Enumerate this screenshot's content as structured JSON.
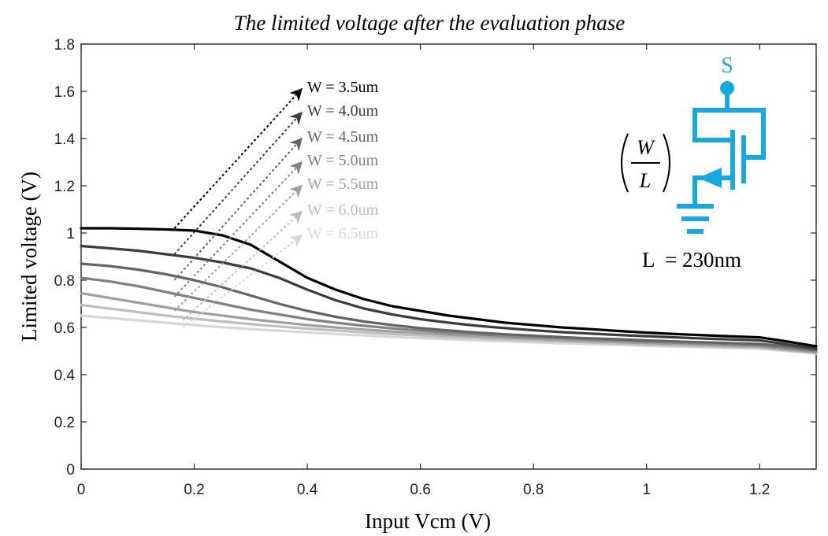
{
  "chart_data": {
    "type": "line",
    "title": "The limited voltage after the evaluation phase",
    "xlabel": "Input Vcm (V)",
    "ylabel": "Limited voltage (V)",
    "xlim": [
      0,
      1.3
    ],
    "ylim": [
      0,
      1.8
    ],
    "x_ticks": [
      0,
      0.2,
      0.4,
      0.6,
      0.8,
      1,
      1.2
    ],
    "x_tick_labels": [
      "0",
      "0.2",
      "0.4",
      "0.6",
      "0.8",
      "1",
      "1.2"
    ],
    "y_ticks": [
      0,
      0.2,
      0.4,
      0.6,
      0.8,
      1,
      1.2,
      1.4,
      1.6,
      1.8
    ],
    "y_tick_labels": [
      "0",
      "0.2",
      "0.4",
      "0.6",
      "0.8",
      "1",
      "1.2",
      "1.4",
      "1.6",
      "1.8"
    ],
    "grid": false,
    "x": [
      0,
      0.05,
      0.1,
      0.15,
      0.2,
      0.25,
      0.3,
      0.35,
      0.4,
      0.45,
      0.5,
      0.55,
      0.6,
      0.65,
      0.7,
      0.75,
      0.8,
      0.85,
      0.9,
      0.95,
      1.0,
      1.05,
      1.1,
      1.15,
      1.2,
      1.25,
      1.3
    ],
    "series": [
      {
        "name": "W = 3.5um",
        "color": "#000000",
        "values": [
          1.02,
          1.02,
          1.018,
          1.015,
          1.01,
          0.99,
          0.95,
          0.88,
          0.81,
          0.76,
          0.72,
          0.69,
          0.67,
          0.65,
          0.635,
          0.62,
          0.61,
          0.6,
          0.593,
          0.585,
          0.578,
          0.572,
          0.567,
          0.562,
          0.558,
          0.54,
          0.52
        ]
      },
      {
        "name": "W = 4.0um",
        "color": "#3c3c3c",
        "values": [
          0.945,
          0.935,
          0.925,
          0.91,
          0.895,
          0.875,
          0.85,
          0.81,
          0.76,
          0.715,
          0.68,
          0.655,
          0.635,
          0.62,
          0.607,
          0.597,
          0.588,
          0.58,
          0.574,
          0.568,
          0.563,
          0.558,
          0.553,
          0.549,
          0.545,
          0.528,
          0.51
        ]
      },
      {
        "name": "W = 4.5um",
        "color": "#646464",
        "values": [
          0.87,
          0.86,
          0.845,
          0.825,
          0.8,
          0.77,
          0.735,
          0.7,
          0.67,
          0.645,
          0.625,
          0.61,
          0.597,
          0.587,
          0.578,
          0.571,
          0.565,
          0.559,
          0.554,
          0.55,
          0.545,
          0.541,
          0.537,
          0.534,
          0.53,
          0.52,
          0.505
        ]
      },
      {
        "name": "W = 5.0um",
        "color": "#828282",
        "values": [
          0.81,
          0.795,
          0.775,
          0.75,
          0.725,
          0.7,
          0.675,
          0.655,
          0.635,
          0.62,
          0.607,
          0.596,
          0.587,
          0.578,
          0.571,
          0.565,
          0.559,
          0.554,
          0.549,
          0.545,
          0.54,
          0.536,
          0.532,
          0.528,
          0.524,
          0.512,
          0.5
        ]
      },
      {
        "name": "W = 5.5um",
        "color": "#a0a0a0",
        "values": [
          0.745,
          0.725,
          0.705,
          0.685,
          0.665,
          0.65,
          0.635,
          0.622,
          0.61,
          0.6,
          0.591,
          0.583,
          0.576,
          0.569,
          0.563,
          0.557,
          0.552,
          0.547,
          0.542,
          0.538,
          0.534,
          0.53,
          0.527,
          0.523,
          0.519,
          0.507,
          0.495
        ]
      },
      {
        "name": "W = 6.0um",
        "color": "#bebebe",
        "values": [
          0.695,
          0.68,
          0.665,
          0.65,
          0.637,
          0.625,
          0.614,
          0.604,
          0.595,
          0.587,
          0.579,
          0.572,
          0.566,
          0.56,
          0.554,
          0.549,
          0.544,
          0.54,
          0.536,
          0.532,
          0.528,
          0.524,
          0.521,
          0.518,
          0.514,
          0.503,
          0.492
        ]
      },
      {
        "name": "W = 6.5um",
        "color": "#d7d7d7",
        "values": [
          0.65,
          0.64,
          0.63,
          0.62,
          0.61,
          0.601,
          0.593,
          0.586,
          0.579,
          0.572,
          0.566,
          0.56,
          0.555,
          0.55,
          0.545,
          0.541,
          0.537,
          0.533,
          0.529,
          0.526,
          0.522,
          0.519,
          0.516,
          0.513,
          0.51,
          0.5,
          0.49
        ]
      }
    ],
    "annotations": {
      "arrows": [
        {
          "label": "W = 3.5um",
          "from": [
            0.165,
            1.02
          ],
          "to": [
            0.39,
            1.61
          ],
          "color": "#000000"
        },
        {
          "label": "W = 4.0um",
          "from": [
            0.165,
            0.91
          ],
          "to": [
            0.39,
            1.51
          ],
          "color": "#3c3c3c"
        },
        {
          "label": "W = 4.5um",
          "from": [
            0.165,
            0.8
          ],
          "to": [
            0.39,
            1.4
          ],
          "color": "#646464"
        },
        {
          "label": "W = 5.0um",
          "from": [
            0.165,
            0.73
          ],
          "to": [
            0.39,
            1.3
          ],
          "color": "#828282"
        },
        {
          "label": "W = 5.5um",
          "from": [
            0.165,
            0.67
          ],
          "to": [
            0.39,
            1.2
          ],
          "color": "#a0a0a0"
        },
        {
          "label": "W = 6.0um",
          "from": [
            0.18,
            0.63
          ],
          "to": [
            0.39,
            1.09
          ],
          "color": "#bebebe"
        },
        {
          "label": "W = 6.5um",
          "from": [
            0.18,
            0.6
          ],
          "to": [
            0.39,
            0.99
          ],
          "color": "#d7d7d7"
        }
      ],
      "inset": {
        "node_label": "S",
        "ratio_numerator": "W",
        "ratio_denominator": "L",
        "length_label": "L  = 230nm",
        "color": "#18a8e0"
      }
    }
  }
}
